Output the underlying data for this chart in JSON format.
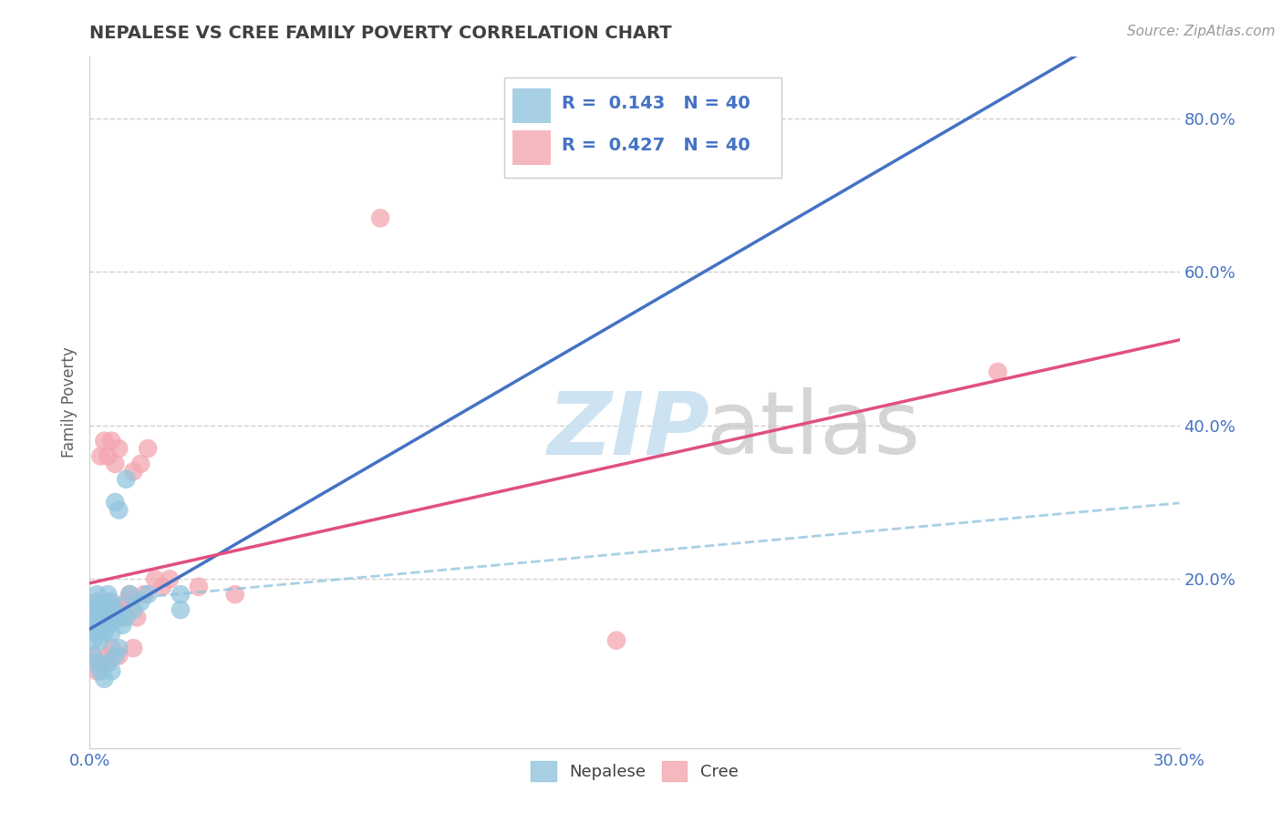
{
  "title": "NEPALESE VS CREE FAMILY POVERTY CORRELATION CHART",
  "source": "Source: ZipAtlas.com",
  "ylabel": "Family Poverty",
  "xlim": [
    0.0,
    0.3
  ],
  "ylim": [
    -0.02,
    0.88
  ],
  "ytick_vals": [
    0.2,
    0.4,
    0.6,
    0.8
  ],
  "ytick_labels": [
    "20.0%",
    "40.0%",
    "60.0%",
    "80.0%"
  ],
  "xtick_vals": [
    0.0,
    0.3
  ],
  "xtick_labels": [
    "0.0%",
    "30.0%"
  ],
  "nepalese_color": "#92c5de",
  "cree_color": "#f4a6b0",
  "nepalese_R": 0.143,
  "cree_R": 0.427,
  "N": 40,
  "nepalese_x": [
    0.001,
    0.001,
    0.001,
    0.002,
    0.002,
    0.002,
    0.002,
    0.003,
    0.003,
    0.003,
    0.004,
    0.004,
    0.004,
    0.005,
    0.005,
    0.005,
    0.006,
    0.006,
    0.006,
    0.007,
    0.007,
    0.008,
    0.008,
    0.009,
    0.01,
    0.01,
    0.011,
    0.012,
    0.014,
    0.016,
    0.001,
    0.002,
    0.003,
    0.004,
    0.005,
    0.006,
    0.007,
    0.008,
    0.025,
    0.025
  ],
  "nepalese_y": [
    0.16,
    0.14,
    0.12,
    0.18,
    0.17,
    0.15,
    0.13,
    0.16,
    0.14,
    0.12,
    0.15,
    0.13,
    0.17,
    0.16,
    0.14,
    0.18,
    0.17,
    0.15,
    0.13,
    0.3,
    0.16,
    0.29,
    0.15,
    0.14,
    0.33,
    0.15,
    0.18,
    0.16,
    0.17,
    0.18,
    0.1,
    0.09,
    0.08,
    0.07,
    0.09,
    0.08,
    0.1,
    0.11,
    0.18,
    0.16
  ],
  "cree_x": [
    0.001,
    0.001,
    0.002,
    0.002,
    0.003,
    0.003,
    0.004,
    0.004,
    0.005,
    0.005,
    0.006,
    0.006,
    0.007,
    0.007,
    0.008,
    0.008,
    0.009,
    0.01,
    0.011,
    0.012,
    0.013,
    0.014,
    0.015,
    0.016,
    0.018,
    0.02,
    0.022,
    0.03,
    0.04,
    0.08,
    0.001,
    0.002,
    0.003,
    0.004,
    0.005,
    0.006,
    0.008,
    0.012,
    0.145,
    0.25
  ],
  "cree_y": [
    0.15,
    0.14,
    0.17,
    0.15,
    0.36,
    0.16,
    0.38,
    0.15,
    0.36,
    0.17,
    0.15,
    0.38,
    0.35,
    0.16,
    0.37,
    0.15,
    0.16,
    0.17,
    0.18,
    0.34,
    0.15,
    0.35,
    0.18,
    0.37,
    0.2,
    0.19,
    0.2,
    0.19,
    0.18,
    0.67,
    0.1,
    0.08,
    0.09,
    0.09,
    0.1,
    0.11,
    0.1,
    0.11,
    0.12,
    0.47
  ],
  "background_color": "#ffffff",
  "grid_color": "#d0d0d0",
  "title_color": "#404040",
  "axis_label_color": "#606060",
  "tick_color": "#4472c4",
  "nepalese_line_color": "#4472c4",
  "nepalese_line_style": "-",
  "nepalese_dash_color": "#92c5de",
  "cree_line_color": "#e05080",
  "cree_line_style": "-"
}
